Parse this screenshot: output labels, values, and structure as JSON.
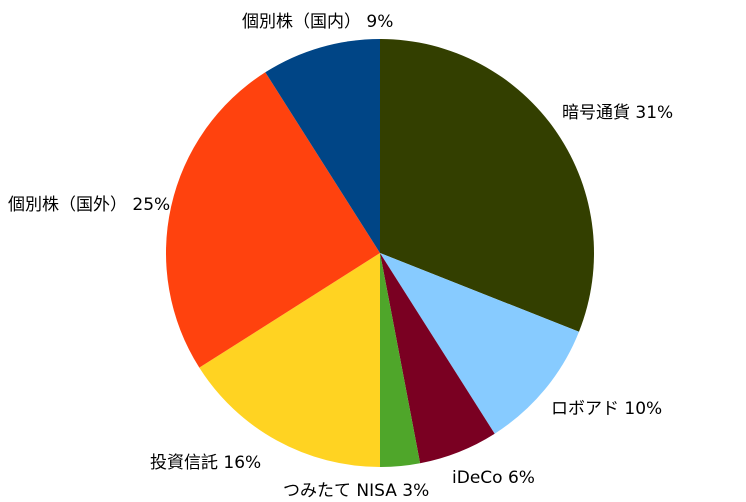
{
  "chart_data": {
    "type": "pie",
    "slices": [
      {
        "label": "暗号通貨 31%",
        "value": 31,
        "color": "#333f00"
      },
      {
        "label": "ロボアド 10%",
        "value": 10,
        "color": "#87cbff"
      },
      {
        "label": "iDeCo 6%",
        "value": 6,
        "color": "#7a0022"
      },
      {
        "label": "つみたて NISA 3%",
        "value": 3,
        "color": "#4fa62a"
      },
      {
        "label": "投資信託 16%",
        "value": 16,
        "color": "#ffd322"
      },
      {
        "label": "個別株（国外） 25%",
        "value": 25,
        "color": "#ff420e"
      },
      {
        "label": "個別株（国内） 9%",
        "value": 9,
        "color": "#004586"
      }
    ],
    "start_angle": "12 o'clock",
    "direction": "clockwise",
    "legend": "none"
  }
}
